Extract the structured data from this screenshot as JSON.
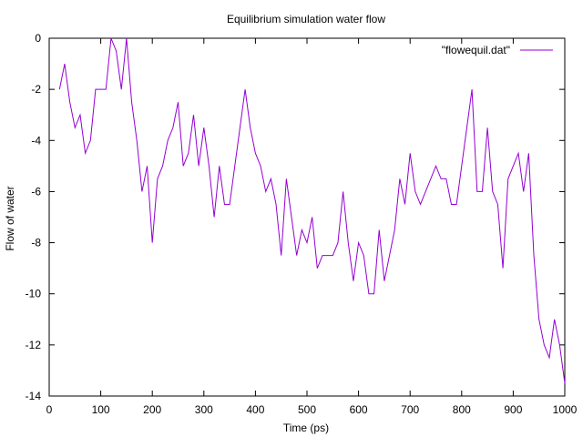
{
  "chart_data": {
    "type": "line",
    "title": "Equilibrium simulation water flow",
    "xlabel": "Time (ps)",
    "ylabel": "Flow of water",
    "xlim": [
      0,
      1000
    ],
    "ylim": [
      -14,
      0
    ],
    "xticks": [
      0,
      100,
      200,
      300,
      400,
      500,
      600,
      700,
      800,
      900,
      1000
    ],
    "yticks": [
      0,
      -2,
      -4,
      -6,
      -8,
      -10,
      -12,
      -14
    ],
    "legend_position": "top-right",
    "border": "all-sides",
    "grid": false,
    "series": [
      {
        "name": "\"flowequil.dat\"",
        "color": "#9400d3",
        "x": [
          20,
          30,
          40,
          50,
          60,
          70,
          80,
          90,
          100,
          110,
          120,
          130,
          140,
          150,
          160,
          170,
          180,
          190,
          200,
          210,
          220,
          230,
          240,
          250,
          260,
          270,
          280,
          290,
          300,
          310,
          320,
          330,
          340,
          350,
          360,
          370,
          380,
          390,
          400,
          410,
          420,
          430,
          440,
          450,
          460,
          470,
          480,
          490,
          500,
          510,
          520,
          530,
          540,
          550,
          560,
          570,
          580,
          590,
          600,
          610,
          620,
          630,
          640,
          650,
          660,
          670,
          680,
          690,
          700,
          710,
          720,
          730,
          740,
          750,
          760,
          770,
          780,
          790,
          800,
          810,
          820,
          830,
          840,
          850,
          860,
          870,
          880,
          890,
          900,
          910,
          920,
          930,
          940,
          950,
          960,
          970,
          980,
          990,
          1000
        ],
        "y": [
          -2,
          -1,
          -2.5,
          -3.5,
          -3,
          -4.5,
          -4,
          -2,
          -2,
          -2,
          0,
          -0.5,
          -2,
          0,
          -2.5,
          -4,
          -6,
          -5,
          -8,
          -5.5,
          -5,
          -4,
          -3.5,
          -2.5,
          -5,
          -4.5,
          -3,
          -5,
          -3.5,
          -5,
          -7,
          -5,
          -6.5,
          -6.5,
          -5,
          -3.5,
          -2,
          -3.5,
          -4.5,
          -5,
          -6,
          -5.5,
          -6.5,
          -8.5,
          -5.5,
          -7,
          -8.5,
          -7.5,
          -8,
          -7,
          -9,
          -8.5,
          -8.5,
          -8.5,
          -8,
          -6,
          -8,
          -9.5,
          -8,
          -8.5,
          -10,
          -10,
          -7.5,
          -9.5,
          -8.5,
          -7.5,
          -5.5,
          -6.5,
          -4.5,
          -6,
          -6.5,
          -6,
          -5.5,
          -5,
          -5.5,
          -5.5,
          -6.5,
          -6.5,
          -5,
          -3.5,
          -2,
          -6,
          -6,
          -3.5,
          -6,
          -6.5,
          -9,
          -5.5,
          -5,
          -4.5,
          -6,
          -4.5,
          -8.5,
          -11,
          -12,
          -12.5,
          -11,
          -12,
          -13.5
        ]
      }
    ]
  }
}
